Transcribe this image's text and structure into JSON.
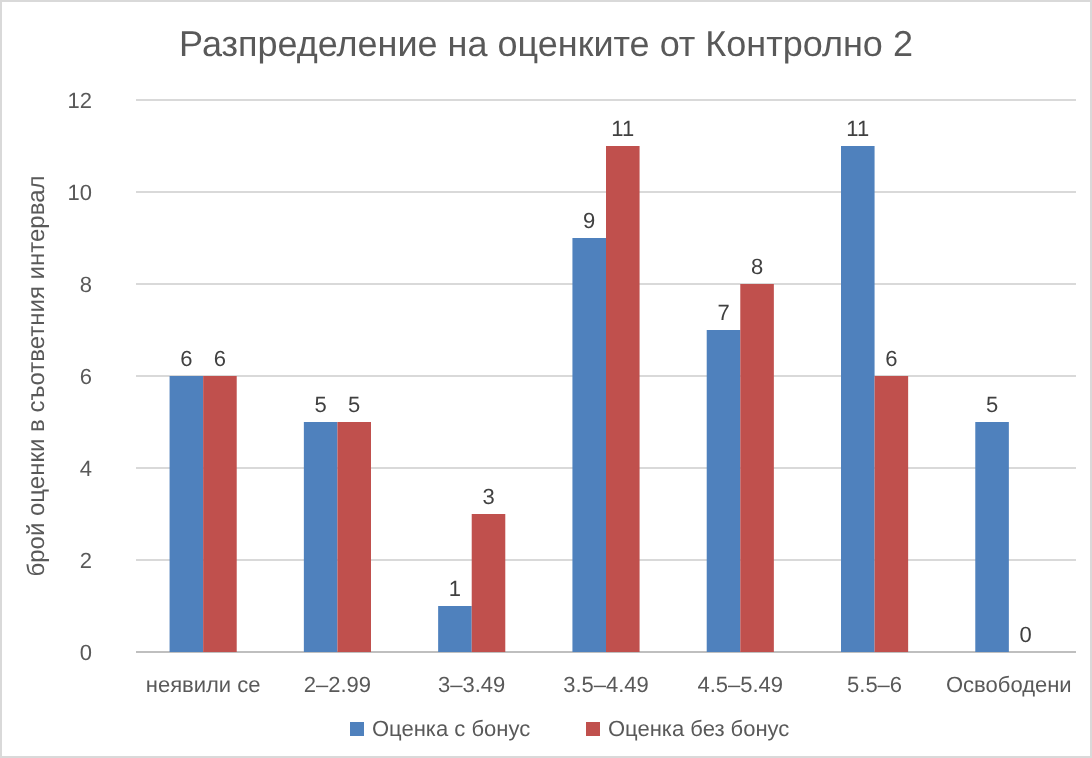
{
  "chart_data": {
    "type": "bar",
    "title": "Разпределение на оценките от Контролно 2",
    "ylabel": "брой оценки в съответния интервал",
    "categories": [
      "неявили се",
      "2–2.99",
      "3–3.49",
      "3.5–4.49",
      "4.5–5.49",
      "5.5–6",
      "Освободени"
    ],
    "series": [
      {
        "name": "Оценка с бонус",
        "color": "#4f81bd",
        "values": [
          6,
          5,
          1,
          9,
          7,
          11,
          5
        ]
      },
      {
        "name": "Оценка без бонус",
        "color": "#c0504d",
        "values": [
          6,
          5,
          3,
          11,
          8,
          6,
          0
        ]
      }
    ],
    "ylim": [
      0,
      12
    ],
    "yticks": [
      0,
      2,
      4,
      6,
      8,
      10,
      12
    ],
    "grid": "y",
    "legend": "bottom",
    "data_labels": true
  }
}
